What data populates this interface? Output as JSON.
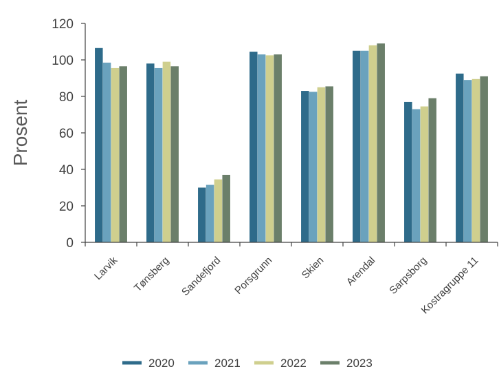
{
  "chart_data": {
    "type": "bar",
    "title": "",
    "xlabel": "",
    "ylabel": "Prosent",
    "ylim": [
      0,
      120
    ],
    "yticks": [
      0,
      20,
      40,
      60,
      80,
      100,
      120
    ],
    "grid": false,
    "legend_position": "bottom",
    "categories": [
      "Larvik",
      "Tønsberg",
      "Sandefjord",
      "Porsgrunn",
      "Skien",
      "Arendal",
      "Sarpsborg",
      "Kostragruppe 11"
    ],
    "series": [
      {
        "name": "2020",
        "color": "#2e6b8a",
        "values": [
          106.5,
          98,
          30,
          104.5,
          83,
          105,
          77,
          92.5
        ]
      },
      {
        "name": "2021",
        "color": "#6aa2bd",
        "values": [
          98.5,
          95.5,
          31.5,
          103,
          82.5,
          105,
          73,
          89
        ]
      },
      {
        "name": "2022",
        "color": "#cfcf8e",
        "values": [
          95.5,
          99,
          34.5,
          102.5,
          85,
          108,
          74.5,
          89.5
        ]
      },
      {
        "name": "2023",
        "color": "#6b7f6a",
        "values": [
          96.5,
          96.5,
          37,
          103,
          85.5,
          109,
          79,
          91
        ]
      }
    ]
  }
}
